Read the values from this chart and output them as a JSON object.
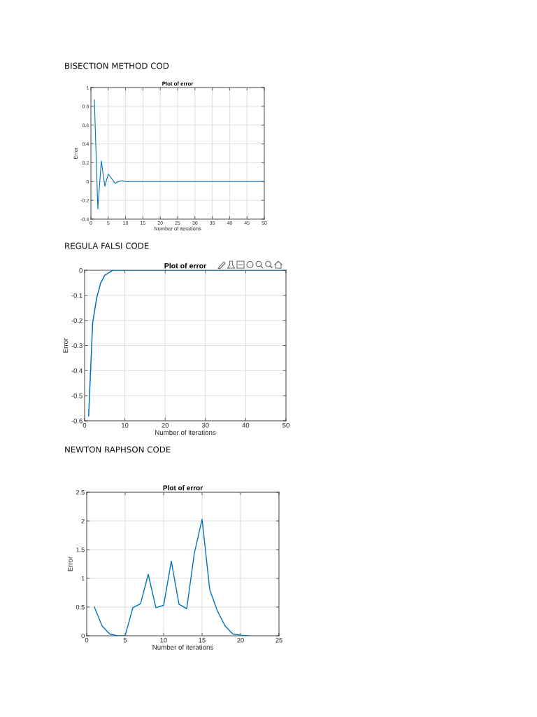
{
  "chart_data": [
    {
      "type": "line",
      "title": "BISECTION METHOD COD",
      "subtitle": "Plot of error",
      "xlabel": "Number of iterations",
      "ylabel": "Error",
      "x": [
        1,
        2,
        3,
        4,
        5,
        6,
        7,
        8,
        9,
        10,
        20,
        30,
        40,
        50
      ],
      "values": [
        0.87,
        -0.29,
        0.22,
        -0.05,
        0.08,
        0.03,
        -0.02,
        0.0,
        0.01,
        0.0,
        0,
        0,
        0,
        0
      ],
      "color": "#0072bd",
      "xlim": [
        0,
        50
      ],
      "ylim": [
        -0.4,
        1
      ],
      "xticks": [
        0,
        5,
        10,
        15,
        20,
        25,
        30,
        35,
        40,
        45,
        50
      ],
      "yticks": [
        -0.4,
        -0.2,
        0,
        0.2,
        0.4,
        0.6,
        0.8,
        1
      ],
      "grid": true,
      "line_style": "solid"
    },
    {
      "type": "line",
      "title": "REGULA FALSI CODE",
      "subtitle": "Plot of error",
      "xlabel": "Number of iterations",
      "ylabel": "Error",
      "x": [
        1,
        2,
        3,
        4,
        5,
        6,
        7,
        8,
        9,
        10,
        20,
        30,
        40,
        50
      ],
      "values": [
        -0.58,
        -0.21,
        -0.11,
        -0.05,
        -0.02,
        -0.01,
        0,
        0,
        0,
        0,
        0,
        0,
        0,
        0
      ],
      "color": "#0072bd",
      "xlim": [
        0,
        50
      ],
      "ylim": [
        -0.6,
        0
      ],
      "xticks": [
        0,
        10,
        20,
        30,
        40,
        50
      ],
      "yticks": [
        -0.6,
        -0.5,
        -0.4,
        -0.3,
        -0.2,
        -0.1,
        0
      ],
      "grid": true,
      "line_style": "solid"
    },
    {
      "type": "line",
      "title": "NEWTON RAPHSON CODE",
      "subtitle": "Plot of error",
      "xlabel": "Number of iterations",
      "ylabel": "Error",
      "x": [
        1,
        2,
        3,
        4,
        5,
        6,
        7,
        8,
        9,
        10,
        11,
        12,
        13,
        14,
        15,
        16,
        17,
        18,
        19,
        20,
        21
      ],
      "values": [
        0.5,
        0.17,
        0.03,
        0.0,
        0,
        0.49,
        0.56,
        1.07,
        0.49,
        0.53,
        1.3,
        0.55,
        0.47,
        1.44,
        2.03,
        0.8,
        0.43,
        0.17,
        0.03,
        0.01,
        0
      ],
      "color": "#0072bd",
      "xlim": [
        0,
        25
      ],
      "ylim": [
        0,
        2.5
      ],
      "xticks": [
        0,
        5,
        10,
        15,
        20,
        25
      ],
      "yticks": [
        0,
        0.5,
        1,
        1.5,
        2,
        2.5
      ],
      "grid": true,
      "line_style": "solid"
    }
  ]
}
